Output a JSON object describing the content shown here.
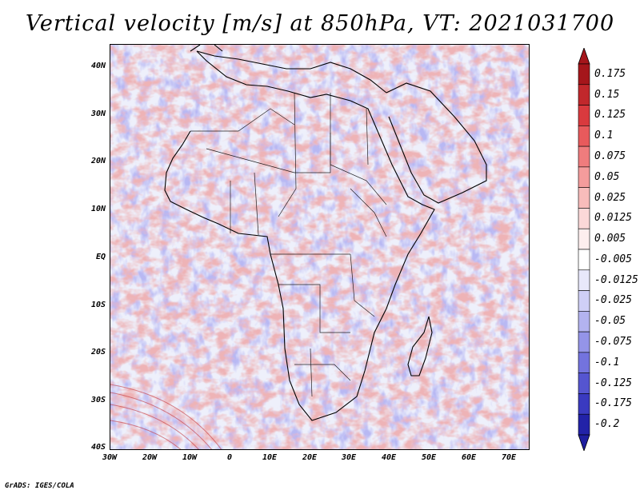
{
  "title": "Vertical velocity [m/s] at 850hPa, VT: 2021031700",
  "credit": "GrADS: IGES/COLA",
  "map": {
    "variable": "Vertical velocity",
    "units": "m/s",
    "level": "850hPa",
    "valid_time": "2021031700",
    "lat_labels": [
      "40N",
      "30N",
      "20N",
      "10N",
      "EQ",
      "10S",
      "20S",
      "30S",
      "40S"
    ],
    "lon_labels": [
      "30W",
      "20W",
      "10W",
      "0",
      "10E",
      "20E",
      "30E",
      "40E",
      "50E",
      "60E",
      "70E"
    ]
  },
  "colorbar": {
    "levels": [
      {
        "label": "0.175",
        "color": "#a5161b"
      },
      {
        "label": "0.15",
        "color": "#c1282c"
      },
      {
        "label": "0.125",
        "color": "#d93a3e"
      },
      {
        "label": "0.1",
        "color": "#e85a5c"
      },
      {
        "label": "0.075",
        "color": "#ef7c7d"
      },
      {
        "label": "0.05",
        "color": "#f49c9c"
      },
      {
        "label": "0.025",
        "color": "#f8bcbb"
      },
      {
        "label": "0.0125",
        "color": "#fbd8d8"
      },
      {
        "label": "0.005",
        "color": "#fdeeee"
      },
      {
        "label": "-0.005",
        "color": "#ffffff"
      },
      {
        "label": "-0.0125",
        "color": "#e8e8fb"
      },
      {
        "label": "-0.025",
        "color": "#cfcff6"
      },
      {
        "label": "-0.05",
        "color": "#b3b3f0"
      },
      {
        "label": "-0.075",
        "color": "#9494e8"
      },
      {
        "label": "-0.1",
        "color": "#7373de"
      },
      {
        "label": "-0.125",
        "color": "#5555d0"
      },
      {
        "label": "-0.175",
        "color": "#3a3ac0"
      },
      {
        "label": "-0.2",
        "color": "#2222a8"
      }
    ],
    "top_color": "#a5161b",
    "bottom_color": "#1e1ea0"
  }
}
